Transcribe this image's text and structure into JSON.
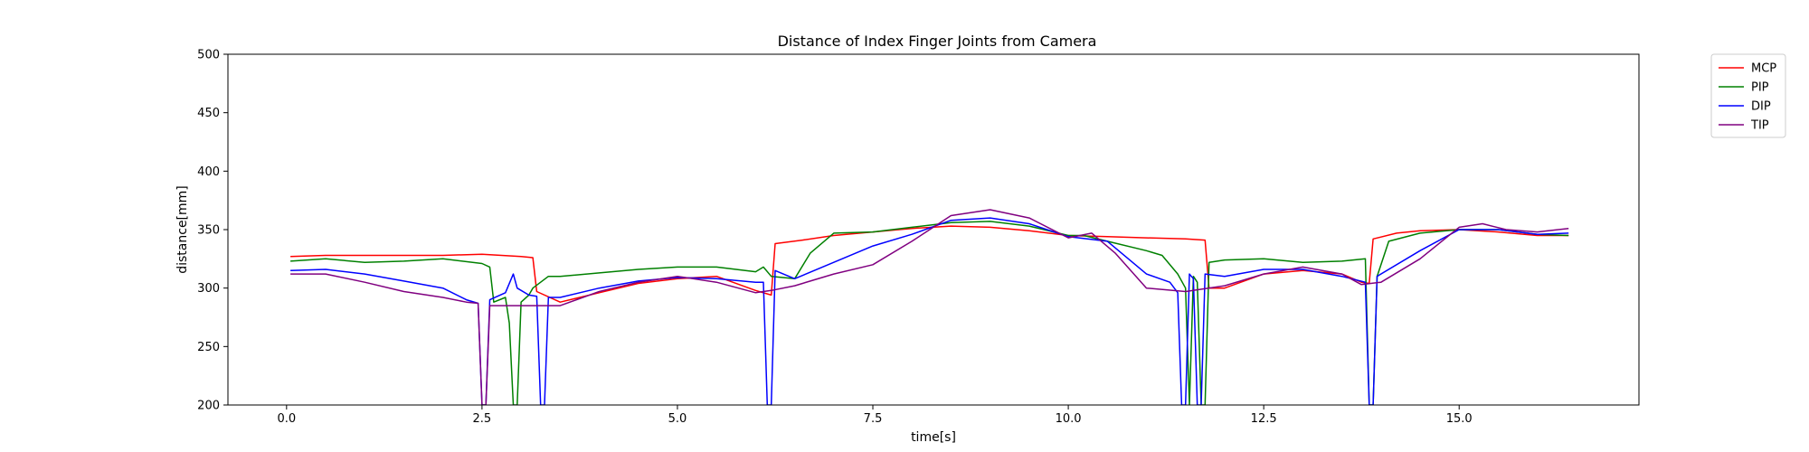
{
  "chart_data": {
    "type": "line",
    "title": "Distance of Index Finger Joints from Camera",
    "xlabel": "time[s]",
    "ylabel": "distance[mm]",
    "xlim": [
      -0.75,
      17.3
    ],
    "ylim": [
      200,
      500
    ],
    "xticks": [
      0.0,
      2.5,
      5.0,
      7.5,
      10.0,
      12.5,
      15.0
    ],
    "xtick_labels": [
      "0.0",
      "2.5",
      "5.0",
      "7.5",
      "10.0",
      "12.5",
      "15.0"
    ],
    "yticks": [
      200,
      250,
      300,
      350,
      400,
      450,
      500
    ],
    "ytick_labels": [
      "200",
      "250",
      "300",
      "350",
      "400",
      "450",
      "500"
    ],
    "grid": false,
    "legend_position": "outside-top-right",
    "series": [
      {
        "name": "MCP",
        "color": "#ff0000",
        "points": [
          [
            0.05,
            327
          ],
          [
            0.5,
            328
          ],
          [
            1.0,
            328
          ],
          [
            1.5,
            328
          ],
          [
            2.0,
            328
          ],
          [
            2.5,
            329
          ],
          [
            3.0,
            327
          ],
          [
            3.15,
            326
          ],
          [
            3.2,
            297
          ],
          [
            3.5,
            288
          ],
          [
            4.0,
            296
          ],
          [
            4.5,
            304
          ],
          [
            5.0,
            308
          ],
          [
            5.5,
            310
          ],
          [
            6.0,
            298
          ],
          [
            6.2,
            294
          ],
          [
            6.25,
            338
          ],
          [
            6.6,
            341
          ],
          [
            7.0,
            345
          ],
          [
            7.5,
            348
          ],
          [
            8.0,
            351
          ],
          [
            8.5,
            353
          ],
          [
            9.0,
            352
          ],
          [
            9.5,
            349
          ],
          [
            10.0,
            345
          ],
          [
            10.5,
            344
          ],
          [
            11.0,
            343
          ],
          [
            11.5,
            342
          ],
          [
            11.75,
            341
          ],
          [
            11.8,
            300
          ],
          [
            12.0,
            300
          ],
          [
            12.5,
            312
          ],
          [
            13.0,
            315
          ],
          [
            13.5,
            312
          ],
          [
            13.75,
            305
          ],
          [
            13.85,
            304
          ],
          [
            13.9,
            342
          ],
          [
            14.2,
            347
          ],
          [
            14.5,
            349
          ],
          [
            15.0,
            350
          ],
          [
            15.5,
            348
          ],
          [
            16.0,
            345
          ],
          [
            16.4,
            345
          ]
        ]
      },
      {
        "name": "PIP",
        "color": "#008000",
        "points": [
          [
            0.05,
            323
          ],
          [
            0.5,
            325
          ],
          [
            1.0,
            322
          ],
          [
            1.5,
            323
          ],
          [
            2.0,
            325
          ],
          [
            2.5,
            321
          ],
          [
            2.6,
            318
          ],
          [
            2.65,
            288
          ],
          [
            2.8,
            292
          ],
          [
            2.85,
            270
          ],
          [
            2.9,
            200
          ],
          [
            2.95,
            200
          ],
          [
            3.0,
            288
          ],
          [
            3.1,
            294
          ],
          [
            3.15,
            300
          ],
          [
            3.35,
            310
          ],
          [
            3.5,
            310
          ],
          [
            4.0,
            313
          ],
          [
            4.5,
            316
          ],
          [
            5.0,
            318
          ],
          [
            5.5,
            318
          ],
          [
            6.0,
            314
          ],
          [
            6.1,
            318
          ],
          [
            6.2,
            310
          ],
          [
            6.5,
            308
          ],
          [
            6.7,
            330
          ],
          [
            7.0,
            347
          ],
          [
            7.5,
            348
          ],
          [
            8.0,
            352
          ],
          [
            8.5,
            356
          ],
          [
            9.0,
            357
          ],
          [
            9.5,
            353
          ],
          [
            10.0,
            345
          ],
          [
            10.2,
            345
          ],
          [
            10.5,
            340
          ],
          [
            11.0,
            332
          ],
          [
            11.2,
            328
          ],
          [
            11.4,
            312
          ],
          [
            11.5,
            300
          ],
          [
            11.55,
            200
          ],
          [
            11.6,
            310
          ],
          [
            11.65,
            305
          ],
          [
            11.7,
            200
          ],
          [
            11.75,
            200
          ],
          [
            11.8,
            322
          ],
          [
            12.0,
            324
          ],
          [
            12.5,
            325
          ],
          [
            13.0,
            322
          ],
          [
            13.5,
            323
          ],
          [
            13.8,
            325
          ],
          [
            13.85,
            200
          ],
          [
            13.9,
            200
          ],
          [
            13.95,
            310
          ],
          [
            14.1,
            340
          ],
          [
            14.5,
            347
          ],
          [
            15.0,
            350
          ],
          [
            15.5,
            350
          ],
          [
            16.0,
            346
          ],
          [
            16.4,
            345
          ]
        ]
      },
      {
        "name": "DIP",
        "color": "#0000ff",
        "points": [
          [
            0.05,
            315
          ],
          [
            0.5,
            316
          ],
          [
            1.0,
            312
          ],
          [
            1.5,
            306
          ],
          [
            2.0,
            300
          ],
          [
            2.3,
            290
          ],
          [
            2.45,
            287
          ],
          [
            2.5,
            200
          ],
          [
            2.55,
            200
          ],
          [
            2.6,
            290
          ],
          [
            2.8,
            296
          ],
          [
            2.9,
            312
          ],
          [
            2.95,
            300
          ],
          [
            3.1,
            294
          ],
          [
            3.2,
            293
          ],
          [
            3.25,
            200
          ],
          [
            3.3,
            200
          ],
          [
            3.35,
            292
          ],
          [
            3.5,
            292
          ],
          [
            4.0,
            300
          ],
          [
            4.5,
            306
          ],
          [
            5.0,
            309
          ],
          [
            5.5,
            308
          ],
          [
            6.0,
            305
          ],
          [
            6.1,
            305
          ],
          [
            6.15,
            200
          ],
          [
            6.2,
            200
          ],
          [
            6.25,
            315
          ],
          [
            6.5,
            308
          ],
          [
            7.0,
            322
          ],
          [
            7.5,
            336
          ],
          [
            8.0,
            346
          ],
          [
            8.5,
            358
          ],
          [
            9.0,
            360
          ],
          [
            9.5,
            355
          ],
          [
            10.0,
            344
          ],
          [
            10.5,
            340
          ],
          [
            11.0,
            312
          ],
          [
            11.3,
            305
          ],
          [
            11.4,
            296
          ],
          [
            11.45,
            200
          ],
          [
            11.5,
            200
          ],
          [
            11.55,
            312
          ],
          [
            11.6,
            308
          ],
          [
            11.65,
            200
          ],
          [
            11.7,
            200
          ],
          [
            11.75,
            312
          ],
          [
            12.0,
            310
          ],
          [
            12.5,
            316
          ],
          [
            13.0,
            316
          ],
          [
            13.5,
            310
          ],
          [
            13.8,
            305
          ],
          [
            13.85,
            200
          ],
          [
            13.9,
            200
          ],
          [
            13.95,
            310
          ],
          [
            14.5,
            332
          ],
          [
            15.0,
            350
          ],
          [
            15.5,
            350
          ],
          [
            16.0,
            346
          ],
          [
            16.4,
            347
          ]
        ]
      },
      {
        "name": "TIP",
        "color": "#800080",
        "points": [
          [
            0.05,
            312
          ],
          [
            0.5,
            312
          ],
          [
            1.0,
            305
          ],
          [
            1.5,
            297
          ],
          [
            2.0,
            292
          ],
          [
            2.3,
            288
          ],
          [
            2.45,
            287
          ],
          [
            2.5,
            200
          ],
          [
            2.55,
            200
          ],
          [
            2.6,
            285
          ],
          [
            3.0,
            285
          ],
          [
            3.5,
            285
          ],
          [
            4.0,
            297
          ],
          [
            4.5,
            305
          ],
          [
            5.0,
            310
          ],
          [
            5.5,
            305
          ],
          [
            6.0,
            296
          ],
          [
            6.2,
            298
          ],
          [
            6.5,
            302
          ],
          [
            7.0,
            312
          ],
          [
            7.5,
            320
          ],
          [
            8.0,
            340
          ],
          [
            8.5,
            362
          ],
          [
            9.0,
            367
          ],
          [
            9.5,
            360
          ],
          [
            10.0,
            343
          ],
          [
            10.3,
            347
          ],
          [
            10.6,
            330
          ],
          [
            11.0,
            300
          ],
          [
            11.5,
            297
          ],
          [
            12.0,
            302
          ],
          [
            12.5,
            312
          ],
          [
            13.0,
            318
          ],
          [
            13.5,
            312
          ],
          [
            13.75,
            303
          ],
          [
            14.0,
            305
          ],
          [
            14.5,
            325
          ],
          [
            15.0,
            352
          ],
          [
            15.3,
            355
          ],
          [
            15.6,
            350
          ],
          [
            16.0,
            348
          ],
          [
            16.4,
            351
          ]
        ]
      }
    ]
  }
}
